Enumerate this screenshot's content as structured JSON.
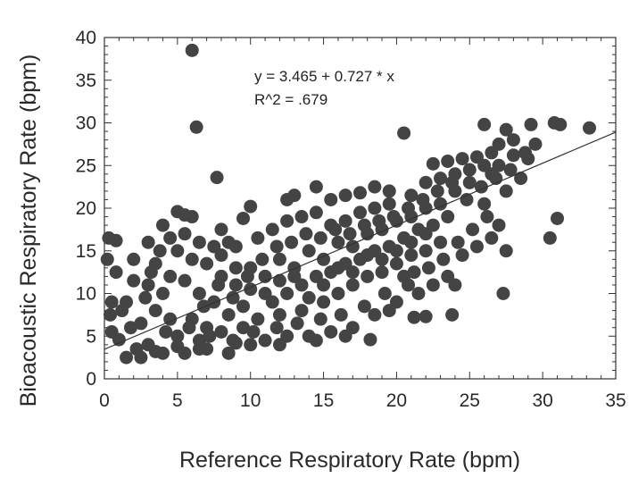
{
  "chart_data": {
    "type": "scatter",
    "title": "",
    "xlabel": "Reference Respiratory Rate (bpm)",
    "ylabel": "Bioacoustic Respiratory Rate (bpm)",
    "xlim": [
      0,
      35
    ],
    "ylim": [
      0,
      40
    ],
    "x_ticks": [
      "0",
      "5",
      "10",
      "15",
      "20",
      "25",
      "30",
      "35"
    ],
    "y_ticks": [
      "0",
      "5",
      "10",
      "15",
      "20",
      "25",
      "30",
      "35",
      "40"
    ],
    "grid": false,
    "legend": "none",
    "marker_color": "#444444",
    "line_color": "#333333",
    "regression": {
      "intercept": 3.465,
      "slope": 0.727
    },
    "annotations": [
      "y = 3.465 + 0.727 * x",
      "R^2 = .679"
    ],
    "points": [
      [
        6.0,
        38.5
      ],
      [
        6.3,
        29.5
      ],
      [
        7.7,
        23.6
      ],
      [
        20.5,
        28.8
      ],
      [
        26.0,
        29.8
      ],
      [
        27.5,
        29.2
      ],
      [
        29.2,
        29.8
      ],
      [
        30.8,
        30.0
      ],
      [
        31.2,
        29.8
      ],
      [
        33.2,
        29.4
      ],
      [
        30.5,
        16.5
      ],
      [
        31.0,
        18.8
      ],
      [
        27.3,
        10.0
      ],
      [
        23.8,
        7.5
      ],
      [
        22.0,
        7.3
      ],
      [
        21.2,
        7.2
      ],
      [
        18.2,
        4.6
      ],
      [
        1.5,
        2.5
      ],
      [
        2.5,
        2.5
      ],
      [
        0.3,
        16.5
      ],
      [
        0.8,
        16.2
      ],
      [
        0.2,
        14.0
      ],
      [
        0.5,
        9.0
      ],
      [
        0.4,
        7.5
      ],
      [
        0.5,
        5.5
      ],
      [
        1.0,
        4.6
      ],
      [
        9.5,
        18.8
      ],
      [
        10.0,
        20.2
      ],
      [
        12.5,
        21.0
      ],
      [
        13.0,
        21.5
      ],
      [
        14.5,
        22.5
      ],
      [
        15.5,
        21.0
      ],
      [
        16.5,
        21.5
      ],
      [
        17.5,
        21.8
      ],
      [
        18.5,
        22.5
      ],
      [
        19.5,
        22.0
      ],
      [
        22.5,
        25.2
      ],
      [
        23.5,
        25.5
      ],
      [
        24.5,
        25.8
      ],
      [
        25.5,
        26.0
      ],
      [
        26.5,
        26.5
      ],
      [
        28.0,
        26.2
      ],
      [
        27.0,
        25.0
      ],
      [
        28.5,
        23.5
      ],
      [
        29.0,
        25.8
      ],
      [
        26.5,
        24.0
      ],
      [
        27.5,
        22.0
      ],
      [
        26.0,
        20.5
      ],
      [
        27.0,
        18.0
      ],
      [
        26.5,
        16.5
      ],
      [
        27.5,
        15.0
      ],
      [
        25.5,
        15.5
      ],
      [
        24.5,
        14.5
      ],
      [
        23.5,
        12.0
      ],
      [
        24.0,
        11.0
      ],
      [
        22.5,
        11.0
      ],
      [
        21.5,
        10.0
      ],
      [
        20.5,
        12.0
      ],
      [
        5.0,
        19.6
      ],
      [
        5.5,
        19.2
      ],
      [
        6.0,
        19.0
      ],
      [
        4.0,
        18.0
      ],
      [
        3.0,
        16.0
      ],
      [
        2.0,
        14.0
      ],
      [
        3.5,
        13.5
      ],
      [
        8.0,
        17.5
      ],
      [
        2.5,
        6.5
      ],
      [
        3.0,
        4.0
      ],
      [
        4.0,
        3.0
      ],
      [
        5.5,
        3.0
      ],
      [
        7.0,
        3.5
      ],
      [
        8.5,
        3.0
      ],
      [
        10.0,
        4.0
      ],
      [
        11.0,
        4.5
      ],
      [
        12.5,
        5.0
      ],
      [
        14.0,
        5.0
      ],
      [
        15.5,
        5.5
      ],
      [
        17.0,
        6.0
      ],
      [
        18.5,
        7.5
      ],
      [
        19.5,
        8.0
      ],
      [
        20.0,
        9.0
      ],
      [
        3.0,
        11.0
      ],
      [
        4.0,
        10.0
      ],
      [
        4.5,
        12.0
      ],
      [
        5.5,
        11.5
      ],
      [
        6.5,
        10.0
      ],
      [
        7.5,
        9.0
      ],
      [
        8.0,
        12.0
      ],
      [
        9.0,
        11.0
      ],
      [
        10.0,
        13.0
      ],
      [
        11.0,
        12.0
      ],
      [
        12.0,
        14.0
      ],
      [
        13.0,
        13.0
      ],
      [
        14.0,
        15.0
      ],
      [
        15.0,
        14.0
      ],
      [
        16.0,
        16.0
      ],
      [
        17.0,
        15.5
      ],
      [
        18.0,
        17.0
      ],
      [
        19.0,
        17.5
      ],
      [
        20.0,
        18.5
      ],
      [
        21.0,
        19.0
      ],
      [
        22.0,
        20.0
      ],
      [
        23.0,
        20.5
      ],
      [
        24.0,
        22.0
      ],
      [
        25.0,
        23.0
      ],
      [
        1.5,
        9.0
      ],
      [
        2.0,
        11.5
      ],
      [
        6.0,
        7.0
      ],
      [
        7.0,
        6.0
      ],
      [
        8.5,
        7.5
      ],
      [
        9.5,
        8.5
      ],
      [
        11.5,
        9.0
      ],
      [
        12.5,
        10.0
      ],
      [
        13.5,
        11.0
      ],
      [
        14.5,
        12.0
      ],
      [
        15.5,
        12.5
      ],
      [
        16.5,
        13.5
      ],
      [
        17.5,
        14.0
      ],
      [
        18.5,
        15.0
      ],
      [
        19.5,
        15.5
      ],
      [
        20.5,
        16.5
      ],
      [
        21.5,
        17.5
      ],
      [
        22.5,
        18.0
      ],
      [
        23.5,
        19.0
      ],
      [
        9.0,
        15.5
      ],
      [
        10.5,
        16.5
      ],
      [
        11.5,
        17.5
      ],
      [
        12.5,
        18.5
      ],
      [
        13.5,
        19.0
      ],
      [
        14.5,
        19.5
      ],
      [
        15.5,
        18.0
      ],
      [
        16.5,
        18.5
      ],
      [
        17.5,
        19.5
      ],
      [
        18.5,
        20.0
      ],
      [
        19.5,
        20.5
      ],
      [
        21.0,
        21.5
      ],
      [
        22.0,
        23.0
      ],
      [
        23.0,
        23.5
      ],
      [
        24.0,
        24.0
      ],
      [
        25.0,
        24.5
      ],
      [
        26.0,
        25.0
      ],
      [
        27.0,
        27.5
      ],
      [
        28.0,
        28.0
      ],
      [
        29.5,
        27.5
      ],
      [
        3.5,
        8.0
      ],
      [
        4.5,
        7.0
      ],
      [
        5.0,
        5.0
      ],
      [
        6.5,
        4.5
      ],
      [
        8.0,
        5.5
      ],
      [
        9.5,
        6.0
      ],
      [
        10.5,
        7.0
      ],
      [
        12.0,
        7.5
      ],
      [
        13.5,
        8.0
      ],
      [
        15.0,
        9.0
      ],
      [
        16.0,
        10.0
      ],
      [
        17.0,
        11.0
      ],
      [
        18.0,
        12.0
      ],
      [
        19.0,
        12.5
      ],
      [
        20.0,
        13.5
      ],
      [
        21.0,
        14.5
      ],
      [
        22.0,
        15.0
      ],
      [
        23.0,
        16.0
      ],
      [
        5.0,
        15.0
      ],
      [
        6.0,
        14.0
      ],
      [
        7.0,
        13.5
      ],
      [
        8.0,
        14.5
      ],
      [
        9.0,
        13.0
      ],
      [
        10.0,
        10.5
      ],
      [
        11.0,
        10.0
      ],
      [
        12.0,
        11.5
      ],
      [
        13.0,
        12.0
      ],
      [
        14.0,
        9.5
      ],
      [
        15.0,
        11.0
      ],
      [
        16.0,
        13.0
      ],
      [
        17.0,
        12.5
      ],
      [
        18.0,
        14.5
      ],
      [
        19.0,
        14.0
      ],
      [
        20.0,
        15.0
      ],
      [
        21.0,
        16.0
      ],
      [
        22.0,
        17.0
      ],
      [
        0.8,
        12.5
      ],
      [
        1.2,
        8.0
      ],
      [
        1.8,
        6.0
      ],
      [
        2.8,
        9.5
      ],
      [
        3.2,
        12.5
      ],
      [
        3.8,
        15.0
      ],
      [
        4.5,
        16.5
      ],
      [
        5.5,
        17.0
      ],
      [
        6.5,
        16.0
      ],
      [
        7.5,
        15.5
      ],
      [
        8.5,
        16.0
      ],
      [
        4.2,
        5.5
      ],
      [
        5.8,
        6.0
      ],
      [
        7.2,
        5.0
      ],
      [
        8.8,
        4.5
      ],
      [
        10.2,
        5.5
      ],
      [
        11.8,
        6.0
      ],
      [
        13.2,
        6.5
      ],
      [
        14.8,
        7.0
      ],
      [
        16.2,
        7.5
      ],
      [
        17.8,
        8.5
      ],
      [
        19.2,
        10.0
      ],
      [
        20.8,
        11.0
      ],
      [
        6.8,
        8.5
      ],
      [
        7.8,
        11.0
      ],
      [
        8.8,
        9.5
      ],
      [
        9.8,
        12.0
      ],
      [
        10.8,
        14.0
      ],
      [
        11.8,
        15.5
      ],
      [
        12.8,
        16.0
      ],
      [
        13.8,
        17.0
      ],
      [
        14.8,
        16.5
      ],
      [
        15.8,
        17.5
      ],
      [
        16.8,
        17.0
      ],
      [
        17.8,
        18.0
      ],
      [
        18.8,
        18.5
      ],
      [
        19.8,
        19.0
      ],
      [
        20.8,
        20.0
      ],
      [
        21.8,
        21.0
      ],
      [
        22.8,
        22.0
      ],
      [
        23.8,
        23.0
      ],
      [
        24.8,
        21.0
      ],
      [
        25.8,
        22.5
      ],
      [
        26.8,
        23.5
      ],
      [
        27.8,
        24.5
      ],
      [
        28.8,
        26.5
      ],
      [
        26.2,
        19.0
      ],
      [
        25.2,
        17.5
      ],
      [
        24.2,
        16.0
      ],
      [
        23.2,
        14.0
      ],
      [
        22.2,
        13.0
      ],
      [
        21.2,
        12.5
      ],
      [
        2.2,
        3.5
      ],
      [
        3.5,
        3.2
      ],
      [
        5.0,
        3.8
      ],
      [
        6.5,
        3.5
      ],
      [
        9.0,
        4.2
      ],
      [
        12.0,
        4.0
      ],
      [
        14.5,
        4.5
      ],
      [
        16.5,
        5.0
      ]
    ]
  }
}
